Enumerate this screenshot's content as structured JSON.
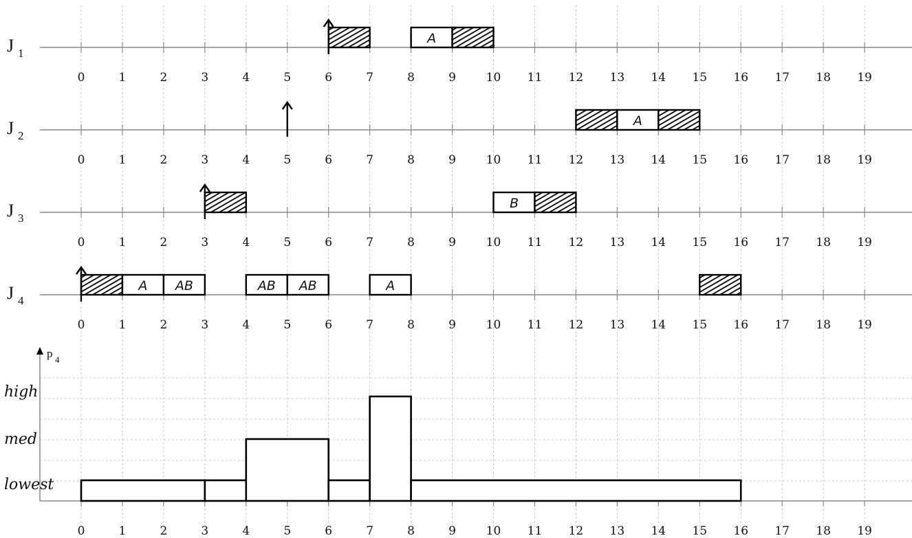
{
  "tick_labels": [
    "0",
    "1",
    "2",
    "3",
    "4",
    "5",
    "6",
    "7",
    "8",
    "9",
    "10",
    "11",
    "12",
    "13",
    "14",
    "15",
    "16",
    "17",
    "18",
    "19"
  ],
  "jobs": [
    {
      "name": "J",
      "sub": "1",
      "arrival": 6,
      "blocks": [
        {
          "start": 6,
          "end": 7,
          "hatched": true,
          "label": ""
        },
        {
          "start": 8,
          "end": 9,
          "hatched": false,
          "label": "A"
        },
        {
          "start": 9,
          "end": 10,
          "hatched": true,
          "label": ""
        }
      ]
    },
    {
      "name": "J",
      "sub": "2",
      "arrival": 5,
      "blocks": [
        {
          "start": 12,
          "end": 13,
          "hatched": true,
          "label": ""
        },
        {
          "start": 13,
          "end": 14,
          "hatched": false,
          "label": "A"
        },
        {
          "start": 14,
          "end": 15,
          "hatched": true,
          "label": ""
        }
      ]
    },
    {
      "name": "J",
      "sub": "3",
      "arrival": 3,
      "blocks": [
        {
          "start": 3,
          "end": 4,
          "hatched": true,
          "label": ""
        },
        {
          "start": 10,
          "end": 11,
          "hatched": false,
          "label": "B"
        },
        {
          "start": 11,
          "end": 12,
          "hatched": true,
          "label": ""
        }
      ]
    },
    {
      "name": "J",
      "sub": "4",
      "arrival": 0,
      "blocks": [
        {
          "start": 0,
          "end": 1,
          "hatched": true,
          "label": ""
        },
        {
          "start": 1,
          "end": 2,
          "hatched": false,
          "label": "A"
        },
        {
          "start": 2,
          "end": 3,
          "hatched": false,
          "label": "AB"
        },
        {
          "start": 4,
          "end": 5,
          "hatched": false,
          "label": "AB"
        },
        {
          "start": 5,
          "end": 6,
          "hatched": false,
          "label": "AB"
        },
        {
          "start": 7,
          "end": 8,
          "hatched": false,
          "label": "A"
        },
        {
          "start": 15,
          "end": 16,
          "hatched": true,
          "label": ""
        }
      ]
    }
  ],
  "priority_chart": {
    "axis_label": "p",
    "axis_sub": "4",
    "levels": [
      "lowest",
      "med",
      "high"
    ],
    "steps": [
      {
        "start": 0,
        "end": 3,
        "level": "lowest"
      },
      {
        "start": 3,
        "end": 4,
        "level": "lowest"
      },
      {
        "start": 4,
        "end": 6,
        "level": "med"
      },
      {
        "start": 6,
        "end": 7,
        "level": "lowest"
      },
      {
        "start": 7,
        "end": 8,
        "level": "high"
      },
      {
        "start": 8,
        "end": 16,
        "level": "lowest"
      }
    ]
  }
}
